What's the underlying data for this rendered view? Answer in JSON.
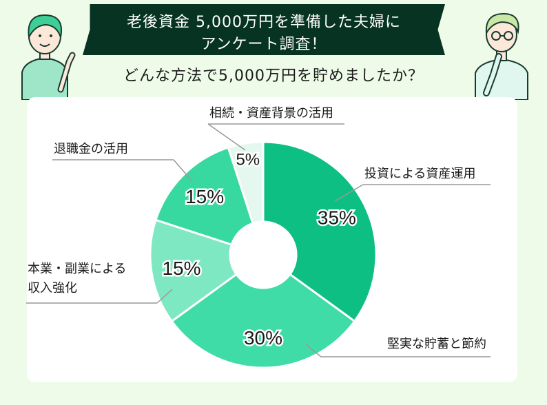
{
  "header": {
    "title_line1": "老後資金 5,000万円を準備した夫婦に",
    "title_line2": "アンケート調査！",
    "question": "どんな方法で5,000万円を貯めましたか？"
  },
  "colors": {
    "background": "#eefbe8",
    "banner": "#063322"
  },
  "chart_data": {
    "type": "pie",
    "donut": true,
    "slices": [
      {
        "label": "投資による資産運用",
        "value": 35,
        "value_label": "35%",
        "color": "#0dbf83"
      },
      {
        "label": "堅実な貯蓄と節約",
        "value": 30,
        "value_label": "30%",
        "color": "#3fdca7"
      },
      {
        "label": "本業・副業による収入強化",
        "label_lines": [
          "本業・副業による",
          "収入強化"
        ],
        "value": 15,
        "value_label": "15%",
        "color": "#7de8c2"
      },
      {
        "label": "退職金の活用",
        "value": 15,
        "value_label": "15%",
        "color": "#38d9a0"
      },
      {
        "label": "相続・資産背景の活用",
        "value": 5,
        "value_label": "5%",
        "color": "#e5f8f0"
      }
    ]
  }
}
